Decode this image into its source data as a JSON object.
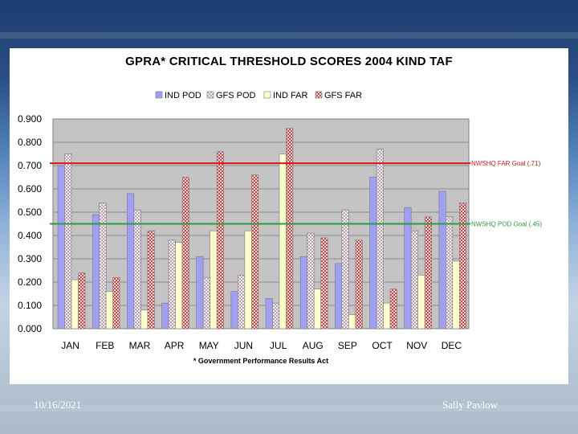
{
  "slide": {
    "footer_date": "10/16/2021",
    "footer_author": "Sally Pavlow"
  },
  "chart_data": {
    "type": "bar",
    "title": "GPRA* CRITICAL THRESHOLD SCORES 2004 KIND TAF",
    "categories": [
      "JAN",
      "FEB",
      "MAR",
      "APR",
      "MAY",
      "JUN",
      "JUL",
      "AUG",
      "SEP",
      "OCT",
      "NOV",
      "DEC"
    ],
    "series": [
      {
        "name": "IND POD",
        "color": "#9f9ff5",
        "values": [
          0.7,
          0.49,
          0.58,
          0.11,
          0.31,
          0.16,
          0.13,
          0.31,
          0.28,
          0.65,
          0.52,
          0.59
        ]
      },
      {
        "name": "GFS POD",
        "color": "#cfc1c8",
        "values": [
          0.75,
          0.54,
          0.51,
          0.38,
          0.22,
          0.23,
          0.11,
          0.41,
          0.51,
          0.77,
          0.42,
          0.48
        ]
      },
      {
        "name": "IND FAR",
        "color": "#ffffcc",
        "values": [
          0.21,
          0.16,
          0.08,
          0.37,
          0.42,
          0.42,
          0.75,
          0.17,
          0.06,
          0.11,
          0.23,
          0.29
        ]
      },
      {
        "name": "GFS FAR",
        "color": "#e39a9a",
        "values": [
          0.24,
          0.22,
          0.42,
          0.65,
          0.76,
          0.66,
          0.86,
          0.39,
          0.38,
          0.17,
          0.48,
          0.54
        ]
      }
    ],
    "ylim": [
      0.0,
      0.9
    ],
    "yticks": [
      0.0,
      0.1,
      0.2,
      0.3,
      0.4,
      0.5,
      0.6,
      0.7,
      0.8,
      0.9
    ],
    "ytick_labels": [
      "0.000",
      "0.100",
      "0.200",
      "0.300",
      "0.400",
      "0.500",
      "0.600",
      "0.700",
      "0.800",
      "0.900"
    ],
    "grid": true,
    "legend_position": "top-center",
    "reference_lines": [
      {
        "label": "NWSHQ FAR Goal (.71)",
        "value": 0.71,
        "color": "#d81818"
      },
      {
        "label": "NWSHQ POD Goal (.45)",
        "value": 0.45,
        "color": "#2c9a4a"
      }
    ],
    "footnote": "* Government Performance Results Act"
  }
}
